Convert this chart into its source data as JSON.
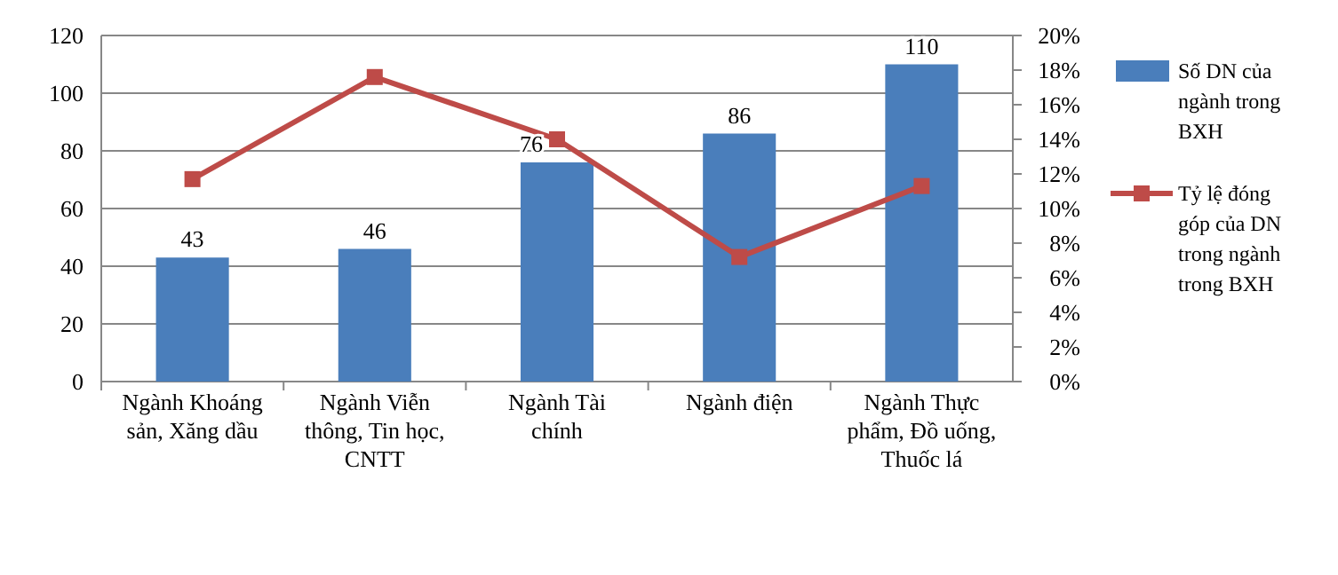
{
  "chart_data": {
    "type": "bar",
    "categories": [
      "Ngành Khoáng\nsản, Xăng dầu",
      "Ngành Viễn\nthông, Tin học,\nCNTT",
      "Ngành Tài\nchính",
      "Ngành điện",
      "Ngành Thực\nphẩm, Đồ uống,\nThuốc lá"
    ],
    "series": [
      {
        "name": "Số DN của ngành trong BXH",
        "color": "#4a7ebb",
        "values": [
          43,
          46,
          76,
          86,
          110
        ],
        "data_labels": true
      },
      {
        "name": "Tỷ lệ đóng góp của DN trong ngành trong BXH",
        "type": "line",
        "axis": "y2",
        "color": "#be4b48",
        "marker": "square",
        "values": [
          11.7,
          17.6,
          14.0,
          7.2,
          11.3
        ]
      }
    ],
    "ylim": [
      0,
      120
    ],
    "yticks": [
      0,
      20,
      40,
      60,
      80,
      100,
      120
    ],
    "y2lim": [
      0,
      20
    ],
    "y2ticks": [
      {
        "value": 0,
        "label": "0%"
      },
      {
        "value": 2,
        "label": "2%"
      },
      {
        "value": 4,
        "label": "4%"
      },
      {
        "value": 6,
        "label": "6%"
      },
      {
        "value": 8,
        "label": "8%"
      },
      {
        "value": 10,
        "label": "10%"
      },
      {
        "value": 12,
        "label": "12%"
      },
      {
        "value": 14,
        "label": "14%"
      },
      {
        "value": 16,
        "label": "16%"
      },
      {
        "value": 18,
        "label": "18%"
      },
      {
        "value": 20,
        "label": "20%"
      }
    ],
    "grid": "y",
    "legend": "right"
  }
}
